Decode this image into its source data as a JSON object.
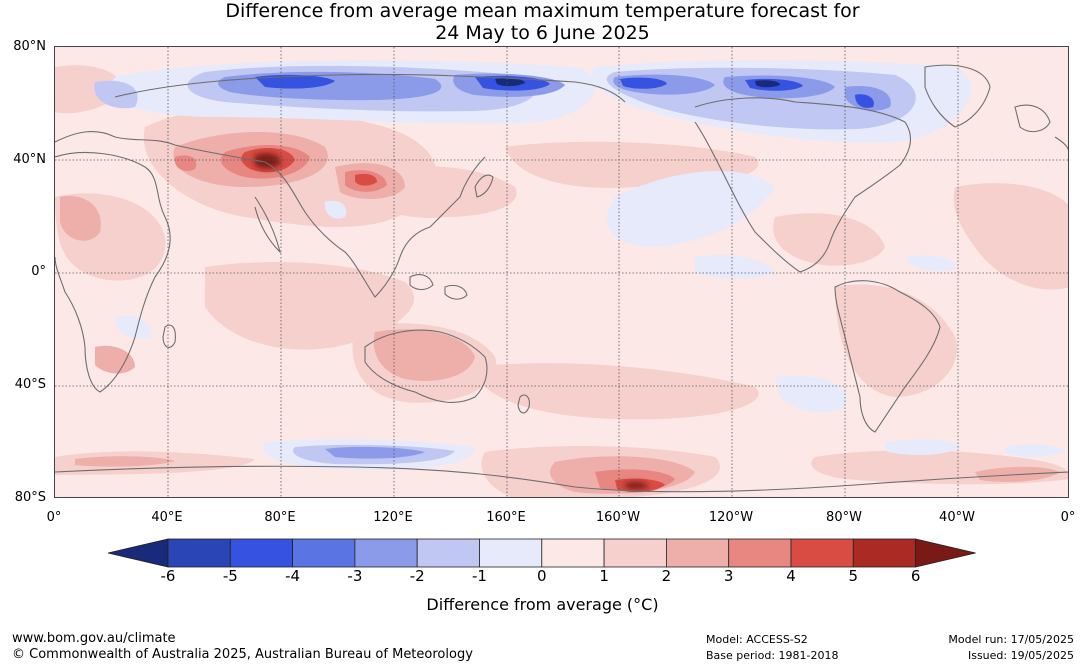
{
  "title": {
    "line1": "Difference from average mean maximum temperature forecast for",
    "line2": "24 May to 6 June 2025"
  },
  "map": {
    "lat_labels": [
      "80°N",
      "40°N",
      "0°",
      "40°S",
      "80°S"
    ],
    "lon_labels": [
      "0°",
      "40°E",
      "80°E",
      "120°E",
      "160°E",
      "160°W",
      "120°W",
      "80°W",
      "40°W",
      "0°"
    ],
    "gridlines": "dotted",
    "coastline_color": "#6e6e6e"
  },
  "colorbar": {
    "ticks": [
      "-6",
      "-5",
      "-4",
      "-3",
      "-2",
      "-1",
      "0",
      "1",
      "2",
      "3",
      "4",
      "5",
      "6"
    ],
    "colors": [
      "#1a2a7a",
      "#2a45b6",
      "#3552e0",
      "#5a74e4",
      "#8b9be9",
      "#bfc7f2",
      "#e6eafb",
      "#fce9e7",
      "#f5d0cd",
      "#eeaeaa",
      "#e88681",
      "#d94c43",
      "#ab2a24",
      "#7a1a16"
    ],
    "label": "Difference from average (°C)"
  },
  "footer": {
    "website": "www.bom.gov.au/climate",
    "copyright": "© Commonwealth of Australia 2025, Australian Bureau of Meteorology",
    "model": "Model: ACCESS-S2",
    "base_period": "Base period: 1981-2018",
    "model_run": "Model run: 17/05/2025",
    "issued": "Issued: 19/05/2025"
  }
}
